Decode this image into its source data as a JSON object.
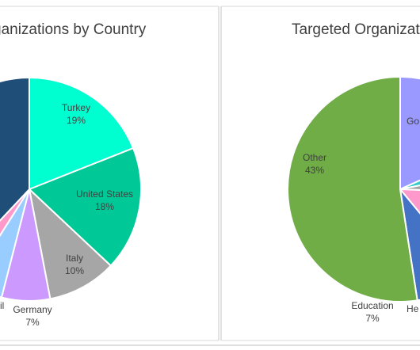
{
  "chart_data": [
    {
      "type": "pie",
      "title": "Targeted Organizations by Country",
      "visible_title": "ganizations by Country",
      "slices": [
        {
          "label": "Turkey",
          "value": 19,
          "value_label": "19%",
          "color": "#00FFD0"
        },
        {
          "label": "United States",
          "value": 18,
          "value_label": "18%",
          "color": "#00C896"
        },
        {
          "label": "Italy",
          "value": 10,
          "value_label": "10%",
          "color": "#A6A6A6"
        },
        {
          "label": "Germany",
          "value": 7,
          "value_label": "7%",
          "color": "#CC99FF"
        },
        {
          "label": "",
          "value": 5,
          "value_label": "",
          "color": "#99CCFF"
        },
        {
          "label": "",
          "value": 3,
          "value_label": "",
          "color": "#FF99CC"
        },
        {
          "label": "",
          "value": 38,
          "value_label": "",
          "color": "#1F4E79"
        }
      ],
      "partial_text": "il"
    },
    {
      "type": "pie",
      "title": "Targeted Organizations",
      "visible_title": "Targeted Organizatio",
      "slices": [
        {
          "label": "Go",
          "value": 15,
          "value_label": "",
          "color": "#9999FF"
        },
        {
          "label": "",
          "value": 3,
          "value_label": "",
          "color": "#33CCCC"
        },
        {
          "label": "",
          "value": 3,
          "value_label": "",
          "color": "#A6A6A6"
        },
        {
          "label": "He",
          "value": 11,
          "value_label": "",
          "color": "#FF99CC"
        },
        {
          "label": "Education",
          "value": 7,
          "value_label": "7%",
          "color": "#4472C4"
        },
        {
          "label": "Other",
          "value": 43,
          "value_label": "43%",
          "color": "#70AD47"
        }
      ]
    }
  ]
}
